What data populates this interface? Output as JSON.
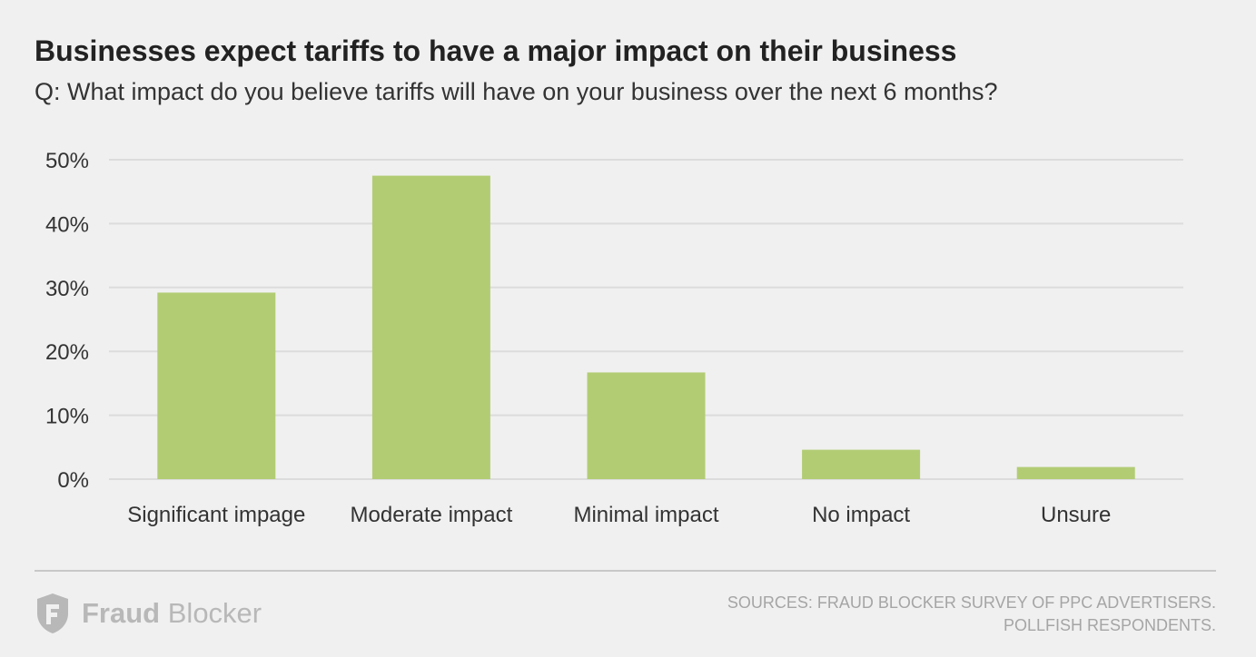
{
  "header": {
    "title": "Businesses expect tariffs to have a major impact on their business",
    "subtitle": "Q: What impact do you believe tariffs will have on your business over the next 6 months?"
  },
  "chart_data": {
    "type": "bar",
    "title": "Businesses expect tariffs to have a major impact on their business",
    "subtitle": "Q: What impact do you believe tariffs will have on your business over the next 6 months?",
    "categories": [
      "Significant impage",
      "Moderate impact",
      "Minimal impact",
      "No impact",
      "Unsure"
    ],
    "values": [
      29.2,
      47.5,
      16.7,
      4.6,
      1.9
    ],
    "xlabel": "",
    "ylabel": "",
    "ylim": [
      0,
      50
    ],
    "yticks": [
      0,
      10,
      20,
      30,
      40,
      50
    ],
    "ytick_labels": [
      "0%",
      "10%",
      "20%",
      "30%",
      "40%",
      "50%"
    ],
    "grid": true,
    "legend": "none",
    "bar_color": "#b2cc74",
    "grid_color": "#dcdcdc"
  },
  "footer": {
    "logo_word_bold": "Fraud",
    "logo_word_regular": "Blocker",
    "logo_icon": "fraud-blocker-shield-icon",
    "sources_line1": "SOURCES: FRAUD BLOCKER SURVEY OF PPC ADVERTISERS.",
    "sources_line2": "POLLFISH RESPONDENTS."
  },
  "colors": {
    "background": "#f0f0f0",
    "bar": "#b2cc74",
    "grid": "#dcdcdc",
    "muted_text": "#a5a5a5",
    "logo": "#b8b8b8"
  }
}
